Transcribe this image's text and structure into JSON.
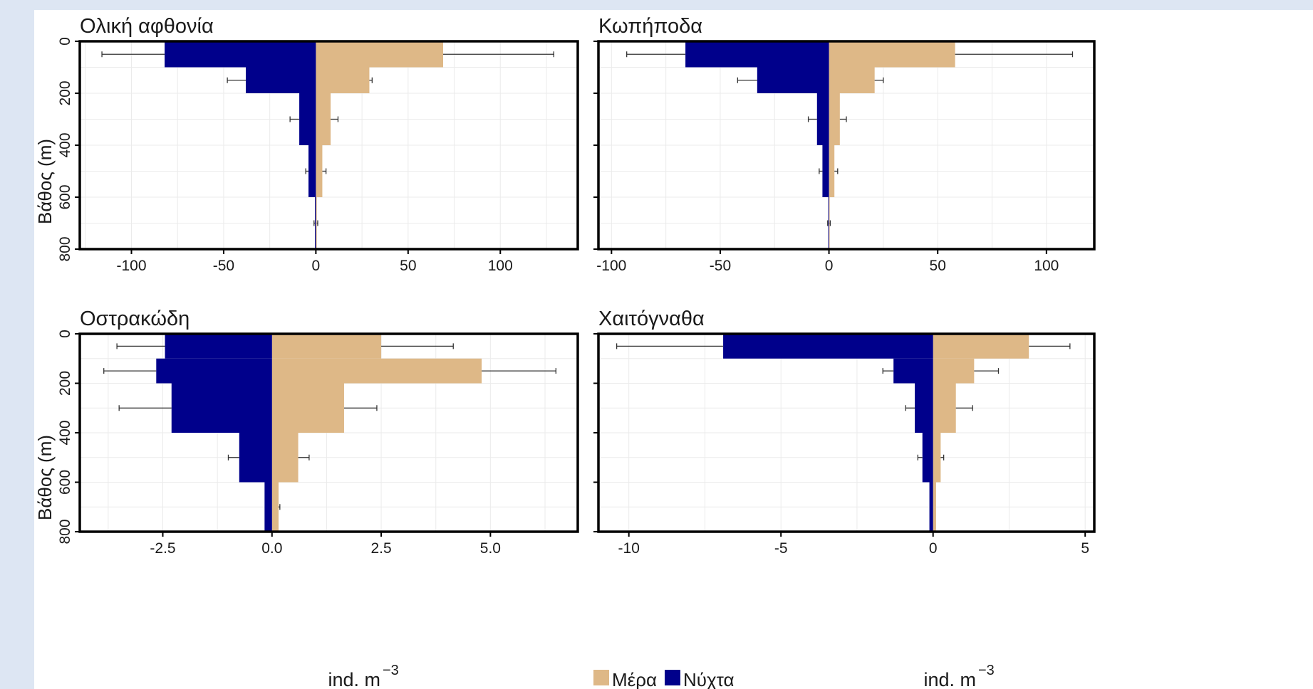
{
  "figure": {
    "xlabel_left": "ind. m",
    "xlabel_right": "ind. m",
    "xlabel_sup": "−3",
    "ylabel": "Βάθος (m)",
    "legend": [
      {
        "label": "Μέρα",
        "color": "#deb887"
      },
      {
        "label": "Νύχτα",
        "color": "#00008b"
      }
    ]
  },
  "colors": {
    "day": "#deb887",
    "night": "#00008b",
    "frame": "#000000",
    "grid": "#ebebeb"
  },
  "chart_data": [
    {
      "type": "bar",
      "title": "Ολική αφθονία",
      "xlim": [
        -128,
        142
      ],
      "ylim": [
        0,
        800
      ],
      "xticks": [
        -100,
        -50,
        0,
        50,
        100
      ],
      "xtick_labels": [
        "-100",
        "-50",
        "0",
        "50",
        "100"
      ],
      "yticks": [
        0,
        200,
        400,
        600,
        800
      ],
      "ytick_labels": [
        "0",
        "200",
        "400",
        "600",
        "800"
      ],
      "show_ytick_labels": true,
      "depth_bins": [
        [
          0,
          100
        ],
        [
          100,
          200
        ],
        [
          200,
          400
        ],
        [
          400,
          600
        ],
        [
          600,
          800
        ]
      ],
      "series": [
        {
          "name": "Μέρα",
          "values": [
            69,
            29,
            8,
            3.5,
            0.5
          ],
          "errors": [
            60,
            1.5,
            4,
            2,
            0.5
          ]
        },
        {
          "name": "Νύχτα",
          "values": [
            -82,
            -38,
            -9,
            -4,
            -0.5
          ],
          "errors": [
            34,
            10,
            5,
            1.5,
            0.5
          ]
        }
      ]
    },
    {
      "type": "bar",
      "title": "Κωπήποδα",
      "xlim": [
        -106,
        122
      ],
      "ylim": [
        0,
        800
      ],
      "xticks": [
        -100,
        -50,
        0,
        50,
        100
      ],
      "xtick_labels": [
        "-100",
        "-50",
        "0",
        "50",
        "100"
      ],
      "yticks": [
        0,
        200,
        400,
        600,
        800
      ],
      "ytick_labels": [
        "0",
        "200",
        "400",
        "600",
        "800"
      ],
      "show_ytick_labels": false,
      "depth_bins": [
        [
          0,
          100
        ],
        [
          100,
          200
        ],
        [
          200,
          400
        ],
        [
          400,
          600
        ],
        [
          600,
          800
        ]
      ],
      "series": [
        {
          "name": "Μέρα",
          "values": [
            58,
            21,
            5,
            2.5,
            0.3
          ],
          "errors": [
            54,
            4,
            3,
            1.5,
            0.3
          ]
        },
        {
          "name": "Νύχτα",
          "values": [
            -66,
            -33,
            -5.5,
            -3,
            -0.3
          ],
          "errors": [
            27,
            9,
            4,
            1.5,
            0.3
          ]
        }
      ]
    },
    {
      "type": "bar",
      "title": "Οστρακώδη",
      "xlim": [
        -4.4,
        7.0
      ],
      "ylim": [
        0,
        800
      ],
      "xticks": [
        -2.5,
        0.0,
        2.5,
        5.0
      ],
      "xtick_labels": [
        "-2.5",
        "0.0",
        "2.5",
        "5.0"
      ],
      "yticks": [
        0,
        200,
        400,
        600,
        800
      ],
      "ytick_labels": [
        "0",
        "200",
        "400",
        "600",
        "800"
      ],
      "show_ytick_labels": true,
      "depth_bins": [
        [
          0,
          100
        ],
        [
          100,
          200
        ],
        [
          200,
          400
        ],
        [
          400,
          600
        ],
        [
          600,
          800
        ]
      ],
      "series": [
        {
          "name": "Μέρα",
          "values": [
            2.5,
            4.8,
            1.65,
            0.6,
            0.15
          ],
          "errors": [
            1.65,
            1.7,
            0.75,
            0.25,
            0.03
          ]
        },
        {
          "name": "Νύχτα",
          "values": [
            -2.45,
            -2.65,
            -2.3,
            -0.75,
            -0.17
          ],
          "errors": [
            1.1,
            1.2,
            1.2,
            0.25,
            0
          ]
        }
      ]
    },
    {
      "type": "bar",
      "title": "Χαιτόγναθα",
      "xlim": [
        -11.0,
        5.3
      ],
      "ylim": [
        0,
        800
      ],
      "xticks": [
        -10,
        -5,
        0,
        5
      ],
      "xtick_labels": [
        "-10",
        "-5",
        "0",
        "5"
      ],
      "yticks": [
        0,
        200,
        400,
        600,
        800
      ],
      "ytick_labels": [
        "0",
        "200",
        "400",
        "600",
        "800"
      ],
      "show_ytick_labels": false,
      "depth_bins": [
        [
          0,
          100
        ],
        [
          100,
          200
        ],
        [
          200,
          400
        ],
        [
          400,
          600
        ],
        [
          600,
          800
        ]
      ],
      "series": [
        {
          "name": "Μέρα",
          "values": [
            3.15,
            1.35,
            0.75,
            0.25,
            0.1
          ],
          "errors": [
            1.35,
            0.8,
            0.55,
            0.1,
            0
          ]
        },
        {
          "name": "Νύχτα",
          "values": [
            -6.9,
            -1.3,
            -0.6,
            -0.35,
            -0.12
          ],
          "errors": [
            3.5,
            0.35,
            0.3,
            0.15,
            0
          ]
        }
      ]
    }
  ]
}
